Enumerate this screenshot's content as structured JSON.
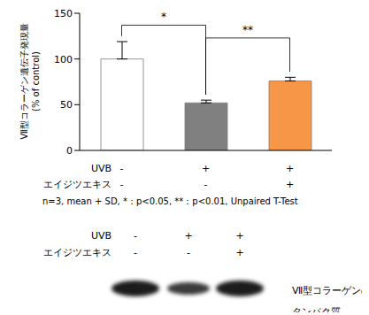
{
  "chart_data": {
    "type": "bar",
    "ylabel": [
      "Ⅶ型コラーゲン遺伝子発現量",
      "(% of control)"
    ],
    "categories": [
      null,
      null,
      null
    ],
    "values": [
      100,
      52,
      76
    ],
    "errors": [
      19,
      3,
      4
    ],
    "colors": [
      "#ffffff",
      "#808080",
      "#f79646"
    ],
    "ylim": [
      0,
      150
    ],
    "yticks": [
      0,
      50,
      100,
      150
    ],
    "grid": false,
    "significance": [
      {
        "pair": [
          0,
          1
        ],
        "label": "*"
      },
      {
        "pair": [
          1,
          2
        ],
        "label": "**"
      }
    ],
    "conditions": [
      {
        "label": "UVB",
        "values": [
          "-",
          "+",
          "+"
        ]
      },
      {
        "label": "エイジツエキス",
        "values": [
          "-",
          "-",
          "+"
        ]
      }
    ],
    "note": "n=3, mean + SD, *：p<0.05, **：p<0.01, Unpaired T-Test",
    "blot": {
      "conditions": [
        {
          "label": "UVB",
          "values": [
            "-",
            "+",
            "+"
          ]
        },
        {
          "label": "エイジツエキス",
          "values": [
            "-",
            "-",
            "+"
          ]
        }
      ],
      "label": [
        "Ⅶ型コラーゲンの",
        "タンパク質"
      ]
    }
  }
}
